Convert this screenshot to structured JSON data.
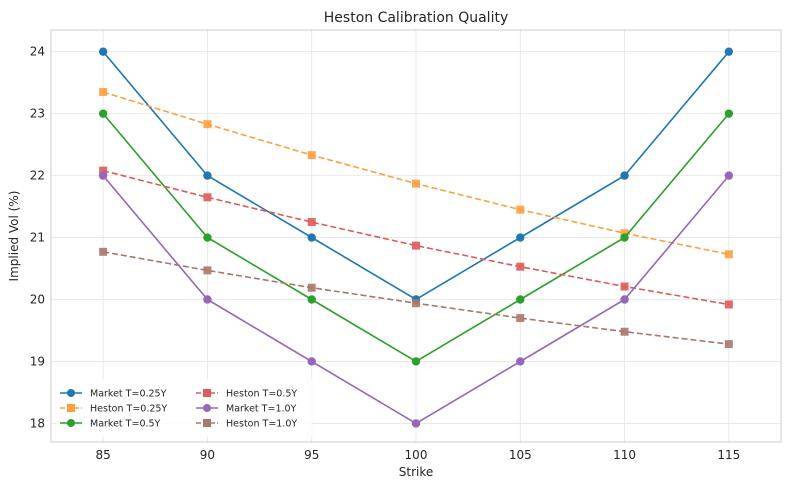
{
  "chart_data": {
    "type": "line",
    "title": "Heston Calibration Quality",
    "xlabel": "Strike",
    "ylabel": "Implied Vol (%)",
    "x": [
      85,
      90,
      95,
      100,
      105,
      110,
      115
    ],
    "xlim": [
      82.5,
      117.5
    ],
    "ylim": [
      17.7,
      24.35
    ],
    "xticks": [
      85,
      90,
      95,
      100,
      105,
      110,
      115
    ],
    "yticks": [
      18,
      19,
      20,
      21,
      22,
      23,
      24
    ],
    "grid": true,
    "legend_position": "lower-left",
    "legend_columns": 2,
    "series": [
      {
        "name": "Market T=0.25Y",
        "values": [
          24.0,
          22.0,
          21.0,
          20.0,
          21.0,
          22.0,
          24.0
        ],
        "color": "#1f77b4",
        "dash": "solid",
        "marker": "circle"
      },
      {
        "name": "Heston T=0.25Y",
        "values": [
          23.35,
          22.83,
          22.33,
          21.87,
          21.45,
          21.07,
          20.73
        ],
        "color": "#ff9f40",
        "dash": "dashed",
        "marker": "square"
      },
      {
        "name": "Market T=0.5Y",
        "values": [
          23.0,
          21.0,
          20.0,
          19.0,
          20.0,
          21.0,
          23.0
        ],
        "color": "#2ca02c",
        "dash": "solid",
        "marker": "circle"
      },
      {
        "name": "Heston T=0.5Y",
        "values": [
          22.08,
          21.65,
          21.25,
          20.87,
          20.53,
          20.21,
          19.92
        ],
        "color": "#e05a5a",
        "dash": "dashed",
        "marker": "square"
      },
      {
        "name": "Market T=1.0Y",
        "values": [
          22.0,
          20.0,
          19.0,
          18.0,
          19.0,
          20.0,
          22.0
        ],
        "color": "#9467bd",
        "dash": "solid",
        "marker": "circle"
      },
      {
        "name": "Heston T=1.0Y",
        "values": [
          20.77,
          20.47,
          20.19,
          19.94,
          19.7,
          19.48,
          19.28
        ],
        "color": "#a8786c",
        "dash": "dashed",
        "marker": "square"
      }
    ]
  }
}
